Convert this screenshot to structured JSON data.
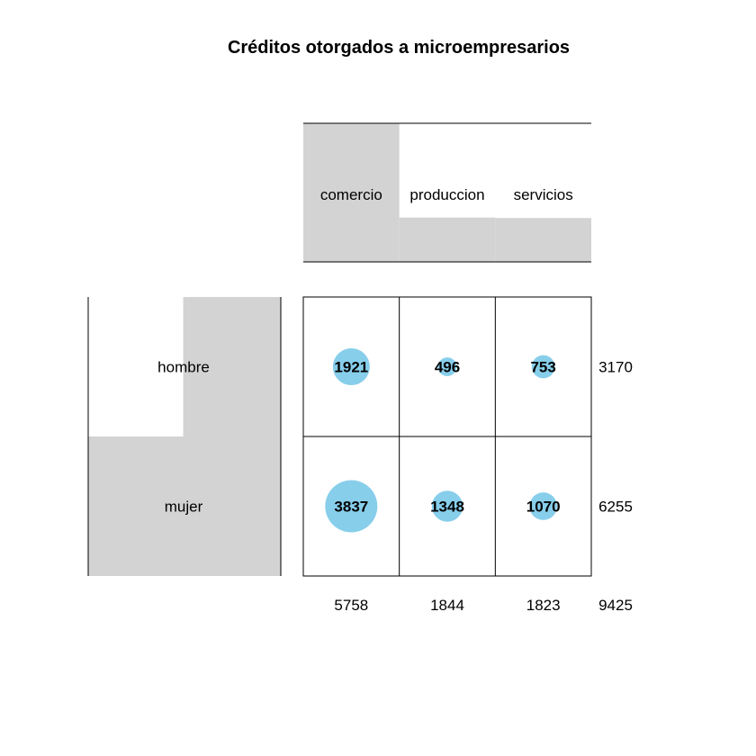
{
  "chart_data": {
    "type": "balloon",
    "title": "Créditos otorgados a microempresarios",
    "columns": [
      "comercio",
      "produccion",
      "servicios"
    ],
    "rows": [
      "hombre",
      "mujer"
    ],
    "values": [
      [
        1921,
        496,
        753
      ],
      [
        3837,
        1348,
        1070
      ]
    ],
    "row_totals": [
      3170,
      6255
    ],
    "col_totals": [
      5758,
      1844,
      1823
    ],
    "grand_total": 9425,
    "balloon_color": "#87CEEB",
    "bar_color": "#D3D3D3"
  }
}
